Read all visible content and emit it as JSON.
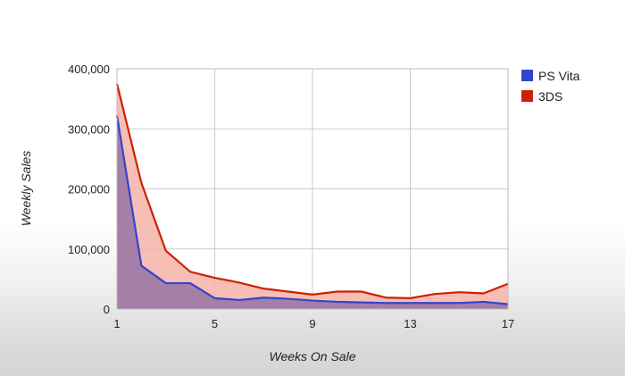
{
  "chart_data": {
    "type": "area",
    "title": "",
    "xlabel": "Weeks On Sale",
    "ylabel": "Weekly Sales",
    "x": [
      1,
      2,
      3,
      4,
      5,
      6,
      7,
      8,
      9,
      10,
      11,
      12,
      13,
      14,
      15,
      16,
      17
    ],
    "xlim": [
      1,
      17
    ],
    "ylim": [
      0,
      400000
    ],
    "x_ticks": [
      1,
      5,
      9,
      13,
      17
    ],
    "y_ticks": [
      0,
      100000,
      200000,
      300000,
      400000
    ],
    "x_tick_labels": [
      "1",
      "5",
      "9",
      "13",
      "17"
    ],
    "y_tick_labels": [
      "0",
      "100,000",
      "200,000",
      "300,000",
      "400,000"
    ],
    "grid": true,
    "legend_position": "right",
    "series": [
      {
        "name": "PS Vita",
        "color": "#3344cc",
        "fill": "#8a6aa3",
        "values": [
          322000,
          72000,
          43000,
          43000,
          18000,
          15000,
          19000,
          17000,
          14000,
          12000,
          11000,
          10000,
          10000,
          10000,
          10000,
          12000,
          8000
        ]
      },
      {
        "name": "3DS",
        "color": "#cc2200",
        "fill": "#f4b3a8",
        "values": [
          375000,
          210000,
          97000,
          62000,
          52000,
          44000,
          34000,
          29000,
          24000,
          29000,
          29000,
          19000,
          18000,
          25000,
          28000,
          26000,
          42000
        ]
      }
    ]
  }
}
